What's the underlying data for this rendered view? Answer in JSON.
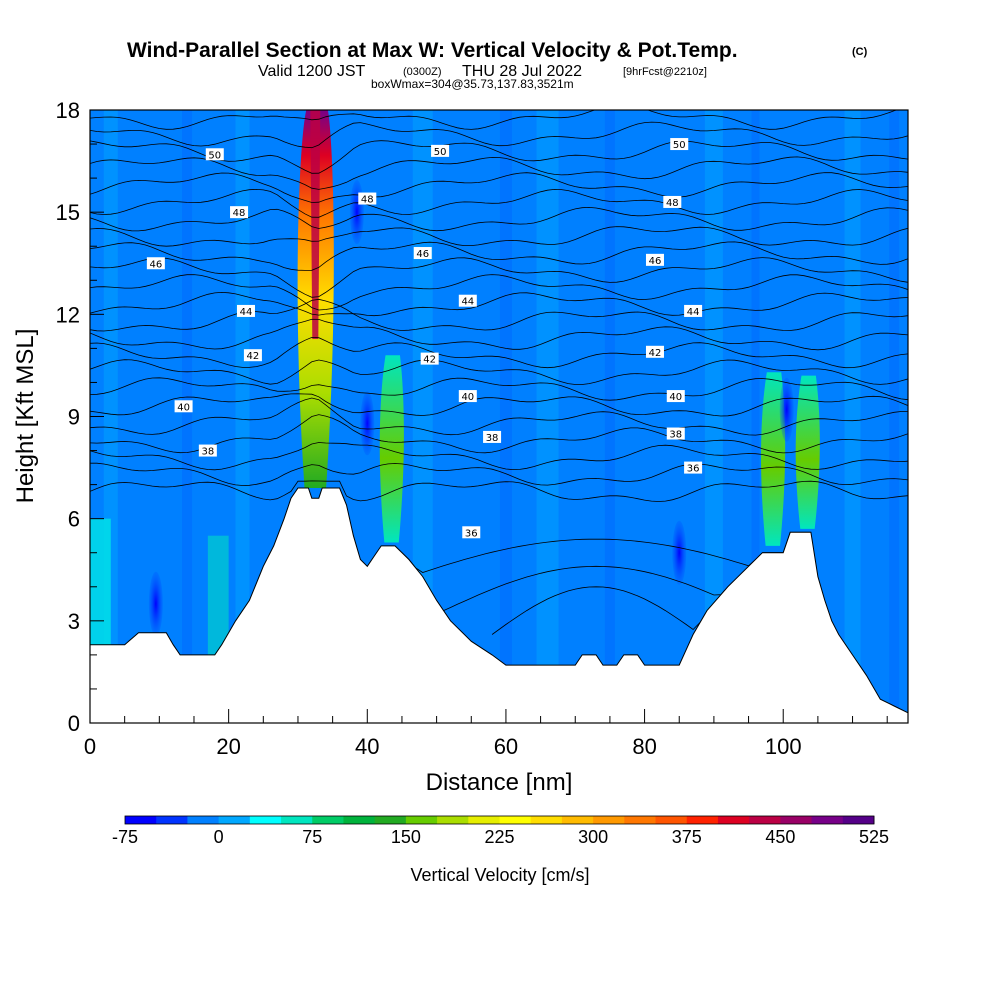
{
  "header": {
    "title": "Wind-Parallel Section at Max W: Vertical Velocity & Pot.Temp.",
    "title_tag": "(C)",
    "valid_prefix": "Valid 1200 JST",
    "valid_utc": "(0300Z)",
    "valid_date": "THU 28 Jul 2022",
    "forecast_tag": "[9hrFcst@2210z]",
    "box_info": "boxWmax=304@35.73,137.83,3521m"
  },
  "chart_data": {
    "type": "heatmap",
    "xlabel": "Distance [nm]",
    "ylabel": "Height [Kft MSL]",
    "xlim": [
      0,
      118
    ],
    "ylim": [
      0,
      18
    ],
    "x_ticks": [
      0,
      20,
      40,
      60,
      80,
      100
    ],
    "y_ticks": [
      0,
      3,
      6,
      9,
      12,
      15,
      18
    ],
    "terrain_kft": [
      [
        0,
        2.3
      ],
      [
        5,
        2.3
      ],
      [
        7,
        2.65
      ],
      [
        11,
        2.65
      ],
      [
        12,
        2.3
      ],
      [
        13,
        2.0
      ],
      [
        18,
        2.0
      ],
      [
        19,
        2.3
      ],
      [
        21,
        3.0
      ],
      [
        23,
        3.6
      ],
      [
        25,
        4.6
      ],
      [
        26.5,
        5.2
      ],
      [
        28,
        6.0
      ],
      [
        29,
        6.6
      ],
      [
        30,
        6.9
      ],
      [
        31.5,
        6.9
      ],
      [
        32,
        6.6
      ],
      [
        33,
        6.6
      ],
      [
        33.5,
        6.9
      ],
      [
        36,
        6.9
      ],
      [
        37,
        6.4
      ],
      [
        38,
        5.5
      ],
      [
        39,
        4.8
      ],
      [
        40,
        4.6
      ],
      [
        41,
        4.9
      ],
      [
        42,
        5.2
      ],
      [
        44,
        5.2
      ],
      [
        46,
        4.8
      ],
      [
        48,
        4.3
      ],
      [
        50,
        3.6
      ],
      [
        52,
        3.0
      ],
      [
        55,
        2.4
      ],
      [
        58,
        2.0
      ],
      [
        60,
        1.7
      ],
      [
        70,
        1.7
      ],
      [
        71,
        2.0
      ],
      [
        73,
        2.0
      ],
      [
        74,
        1.7
      ],
      [
        76,
        1.7
      ],
      [
        77,
        2.0
      ],
      [
        79,
        2.0
      ],
      [
        80,
        1.7
      ],
      [
        85,
        1.7
      ],
      [
        87,
        2.6
      ],
      [
        89,
        3.3
      ],
      [
        92,
        4.0
      ],
      [
        95,
        4.6
      ],
      [
        97,
        5.0
      ],
      [
        100,
        5.0
      ],
      [
        101,
        5.6
      ],
      [
        104,
        5.6
      ],
      [
        105,
        4.3
      ],
      [
        106,
        3.6
      ],
      [
        107,
        3.0
      ],
      [
        108,
        2.6
      ],
      [
        110,
        2.0
      ],
      [
        112,
        1.4
      ],
      [
        114,
        0.7
      ],
      [
        116,
        0.5
      ],
      [
        118,
        0.3
      ]
    ],
    "updrafts": [
      {
        "x": 32.5,
        "y_bottom": 6.9,
        "y_top": 18,
        "peak_cm_s": 525
      },
      {
        "x": 43.5,
        "y_bottom": 5.3,
        "y_top": 10.8,
        "peak_cm_s": 110
      },
      {
        "x": 98.5,
        "y_bottom": 5.2,
        "y_top": 10.3,
        "peak_cm_s": 90
      },
      {
        "x": 103.5,
        "y_bottom": 5.7,
        "y_top": 10.2,
        "peak_cm_s": 110
      }
    ],
    "downdrafts": [
      {
        "x": 38.5,
        "y": 15,
        "strength_cm_s": -40
      },
      {
        "x": 40,
        "y": 8.8,
        "strength_cm_s": -60
      },
      {
        "x": 9.5,
        "y": 3.5,
        "strength_cm_s": -50
      },
      {
        "x": 85,
        "y": 5.0,
        "strength_cm_s": -55
      },
      {
        "x": 100.5,
        "y": 9.2,
        "strength_cm_s": -65
      }
    ],
    "theta_contour_labels": [
      {
        "value": "50",
        "x": 18,
        "y": 16.7
      },
      {
        "value": "50",
        "x": 50.5,
        "y": 16.8
      },
      {
        "value": "50",
        "x": 85,
        "y": 17.0
      },
      {
        "value": "48",
        "x": 21.5,
        "y": 15.0
      },
      {
        "value": "48",
        "x": 40,
        "y": 15.4
      },
      {
        "value": "48",
        "x": 84,
        "y": 15.3
      },
      {
        "value": "46",
        "x": 9.5,
        "y": 13.5
      },
      {
        "value": "46",
        "x": 48,
        "y": 13.8
      },
      {
        "value": "46",
        "x": 81.5,
        "y": 13.6
      },
      {
        "value": "44",
        "x": 22.5,
        "y": 12.1
      },
      {
        "value": "44",
        "x": 54.5,
        "y": 12.4
      },
      {
        "value": "44",
        "x": 87,
        "y": 12.1
      },
      {
        "value": "42",
        "x": 23.5,
        "y": 10.8
      },
      {
        "value": "42",
        "x": 49,
        "y": 10.7
      },
      {
        "value": "42",
        "x": 81.5,
        "y": 10.9
      },
      {
        "value": "40",
        "x": 13.5,
        "y": 9.3
      },
      {
        "value": "40",
        "x": 54.5,
        "y": 9.6
      },
      {
        "value": "40",
        "x": 84.5,
        "y": 9.6
      },
      {
        "value": "38",
        "x": 17,
        "y": 8.0
      },
      {
        "value": "38",
        "x": 58,
        "y": 8.4
      },
      {
        "value": "38",
        "x": 84.5,
        "y": 8.5
      },
      {
        "value": "36",
        "x": 87,
        "y": 7.5
      },
      {
        "value": "36",
        "x": 55,
        "y": 5.6
      }
    ]
  },
  "colorbar": {
    "label": "Vertical Velocity [cm/s]",
    "tick_labels": [
      "-75",
      "0",
      "75",
      "150",
      "225",
      "300",
      "375",
      "450",
      "525"
    ],
    "colors": [
      "#0000ff",
      "#0033ff",
      "#0080ff",
      "#00a8ff",
      "#00ffff",
      "#00e6bf",
      "#00cc66",
      "#00b33c",
      "#22aa22",
      "#66cc00",
      "#aadd00",
      "#e6ee00",
      "#ffff00",
      "#ffdd00",
      "#ffbb00",
      "#ff9900",
      "#ff7700",
      "#ff5500",
      "#ff2200",
      "#dd0022",
      "#bb0044",
      "#990066",
      "#770088",
      "#550088"
    ]
  }
}
